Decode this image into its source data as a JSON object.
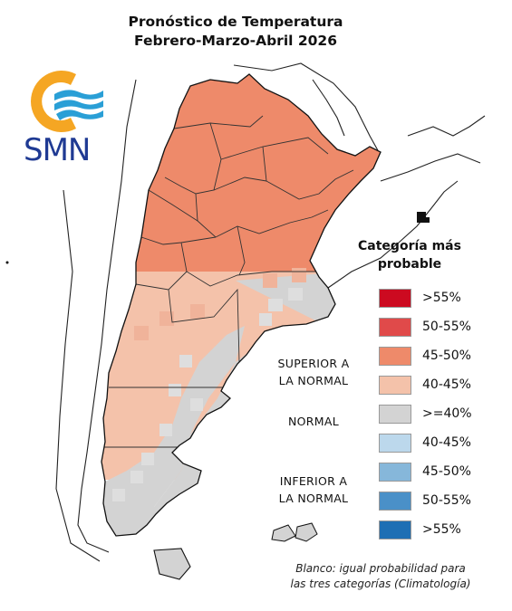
{
  "title": {
    "line1": "Pronóstico de Temperatura",
    "line2": "Febrero-Marzo-Abril 2026"
  },
  "logo": {
    "text": "SMN",
    "colors": {
      "sun": "#f5a623",
      "waves": "#2a9fd6",
      "text": "#1f3a93"
    }
  },
  "legend": {
    "title_line1": "Categoría más",
    "title_line2": "probable",
    "items": [
      {
        "label": ">55%",
        "color": "#cc0a20"
      },
      {
        "label": "50-55%",
        "color": "#e04a4a"
      },
      {
        "label": "45-50%",
        "color": "#ee8a6a"
      },
      {
        "label": "40-45%",
        "color": "#f4c2aa"
      },
      {
        "label": ">=40%",
        "color": "#d3d3d3"
      },
      {
        "label": "40-45%",
        "color": "#bcd8ec"
      },
      {
        "label": "45-50%",
        "color": "#86b7da"
      },
      {
        "label": "50-55%",
        "color": "#4a90c8"
      },
      {
        "label": ">55%",
        "color": "#1e6fb4"
      }
    ],
    "groups": {
      "superior_line1": "SUPERIOR A",
      "superior_line2": "LA NORMAL",
      "normal": "NORMAL",
      "inferior_line1": "INFERIOR A",
      "inferior_line2": "LA NORMAL"
    }
  },
  "note": {
    "line1": "Blanco: igual probabilidad para",
    "line2": "las tres categorías (Climatología)"
  },
  "map_colors": {
    "north": "#ee8a6a",
    "center": "#f4c2aa",
    "south": "#d3d3d3",
    "border": "#222222",
    "outline": "#111111"
  }
}
